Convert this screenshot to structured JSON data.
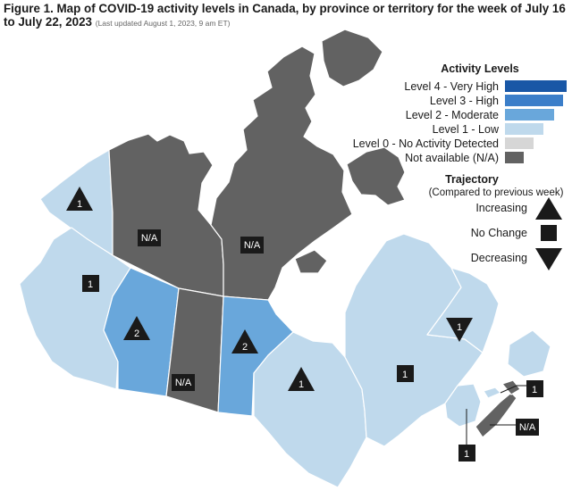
{
  "title": {
    "text": "Figure 1. Map of COVID-19 activity levels in Canada, by province or territory for the week of July 16 to July 22, 2023",
    "updated": "(Last updated August 1, 2023, 9 am ET)"
  },
  "legend": {
    "title": "Activity Levels",
    "levels": [
      {
        "label": "Level 4 - Very High",
        "color": "#1957a6"
      },
      {
        "label": "Level 3 - High",
        "color": "#3b7ec9"
      },
      {
        "label": "Level 2 - Moderate",
        "color": "#69a7db"
      },
      {
        "label": "Level 1 - Low",
        "color": "#bfd9ec"
      },
      {
        "label": "Level 0 - No Activity Detected",
        "color": "#d6d6d6"
      },
      {
        "label": "Not available (N/A)",
        "color": "#626262"
      }
    ],
    "trajectory_title": "Trajectory",
    "trajectory_subtitle": "(Compared to previous week)",
    "trajectory": [
      {
        "label": "Increasing",
        "icon": "triangle-up-icon"
      },
      {
        "label": "No Change",
        "icon": "square-icon"
      },
      {
        "label": "Decreasing",
        "icon": "triangle-down-icon"
      }
    ]
  },
  "regions": [
    {
      "name": "Yukon",
      "level": "1",
      "trajectory": "increasing"
    },
    {
      "name": "Northwest Territories",
      "level": "N/A",
      "trajectory": ""
    },
    {
      "name": "Nunavut",
      "level": "N/A",
      "trajectory": ""
    },
    {
      "name": "British Columbia",
      "level": "1",
      "trajectory": "no change"
    },
    {
      "name": "Alberta",
      "level": "2",
      "trajectory": "increasing"
    },
    {
      "name": "Saskatchewan",
      "level": "N/A",
      "trajectory": ""
    },
    {
      "name": "Manitoba",
      "level": "2",
      "trajectory": "increasing"
    },
    {
      "name": "Ontario",
      "level": "1",
      "trajectory": "increasing"
    },
    {
      "name": "Quebec",
      "level": "1",
      "trajectory": "no change"
    },
    {
      "name": "Newfoundland and Labrador",
      "level": "1",
      "trajectory": "decreasing"
    },
    {
      "name": "Prince Edward Island",
      "level": "1",
      "trajectory": "no change"
    },
    {
      "name": "Nova Scotia",
      "level": "N/A",
      "trajectory": ""
    },
    {
      "name": "New Brunswick",
      "level": "1",
      "trajectory": "no change"
    }
  ]
}
